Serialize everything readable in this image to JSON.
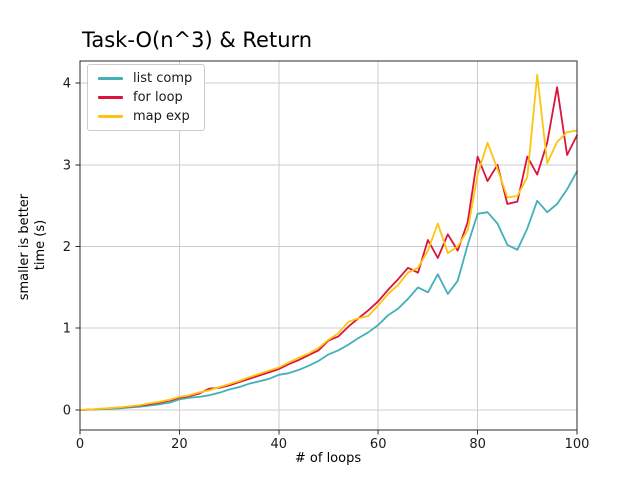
{
  "chart_data": {
    "type": "line",
    "title": "Task-O(n^3) & Return",
    "xlabel": "# of loops",
    "ylabel_lines": [
      "smaller is better",
      "time (s)"
    ],
    "x": [
      0,
      2,
      4,
      6,
      8,
      10,
      12,
      14,
      16,
      18,
      20,
      22,
      24,
      26,
      28,
      30,
      32,
      34,
      36,
      38,
      40,
      42,
      44,
      46,
      48,
      50,
      52,
      54,
      56,
      58,
      60,
      62,
      64,
      66,
      68,
      70,
      72,
      74,
      76,
      78,
      80,
      82,
      84,
      86,
      88,
      90,
      92,
      94,
      96,
      98,
      100
    ],
    "series": [
      {
        "name": "list comp",
        "color": "#42b0b8",
        "values": [
          0,
          0.005,
          0.01,
          0.015,
          0.02,
          0.03,
          0.04,
          0.055,
          0.07,
          0.09,
          0.13,
          0.15,
          0.16,
          0.18,
          0.21,
          0.25,
          0.28,
          0.32,
          0.35,
          0.38,
          0.43,
          0.45,
          0.49,
          0.54,
          0.6,
          0.68,
          0.73,
          0.8,
          0.88,
          0.95,
          1.04,
          1.16,
          1.24,
          1.36,
          1.5,
          1.44,
          1.66,
          1.42,
          1.58,
          2.02,
          2.4,
          2.42,
          2.28,
          2.02,
          1.96,
          2.22,
          2.56,
          2.42,
          2.52,
          2.7,
          2.92
        ]
      },
      {
        "name": "for loop",
        "color": "#dc143c",
        "values": [
          0,
          0.005,
          0.012,
          0.02,
          0.03,
          0.04,
          0.055,
          0.07,
          0.09,
          0.115,
          0.15,
          0.17,
          0.2,
          0.26,
          0.27,
          0.3,
          0.34,
          0.38,
          0.42,
          0.46,
          0.5,
          0.56,
          0.61,
          0.67,
          0.73,
          0.85,
          0.9,
          1.02,
          1.12,
          1.22,
          1.33,
          1.47,
          1.6,
          1.74,
          1.68,
          2.08,
          1.86,
          2.15,
          1.95,
          2.3,
          3.1,
          2.8,
          3.0,
          2.52,
          2.55,
          3.1,
          2.88,
          3.27,
          3.95,
          3.12,
          3.36
        ]
      },
      {
        "name": "map exp",
        "color": "#fdc511",
        "values": [
          0,
          0.006,
          0.014,
          0.022,
          0.032,
          0.045,
          0.06,
          0.08,
          0.1,
          0.125,
          0.16,
          0.18,
          0.215,
          0.24,
          0.28,
          0.315,
          0.355,
          0.4,
          0.44,
          0.48,
          0.52,
          0.58,
          0.64,
          0.69,
          0.76,
          0.86,
          0.94,
          1.08,
          1.12,
          1.15,
          1.28,
          1.42,
          1.53,
          1.68,
          1.74,
          1.95,
          2.28,
          1.92,
          2.0,
          2.2,
          2.88,
          3.27,
          2.95,
          2.6,
          2.62,
          2.85,
          4.1,
          3.02,
          3.28,
          3.4,
          3.42
        ]
      }
    ],
    "xticks": [
      0,
      20,
      40,
      60,
      80,
      100
    ],
    "yticks": [
      0,
      1,
      2,
      3,
      4
    ],
    "xlim": [
      0,
      100
    ],
    "ylim": [
      -0.245,
      4.27
    ],
    "grid": true,
    "grid_color": "#cccccc",
    "spine_color": "#2b2b2b",
    "text_color": "#1a1a1a",
    "legend_position": "upper left"
  }
}
